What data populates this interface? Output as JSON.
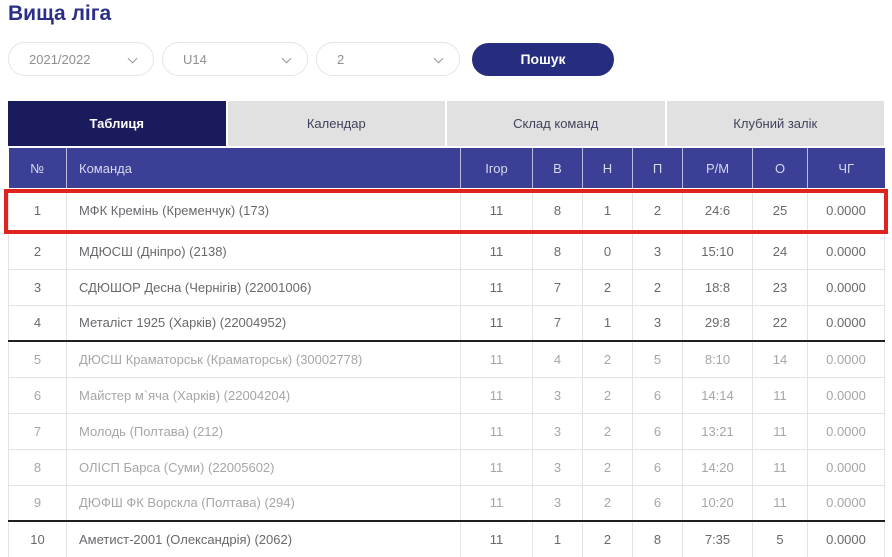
{
  "page": {
    "title": "Вища ліга"
  },
  "filters": {
    "season": {
      "value": "2021/2022"
    },
    "age_group": {
      "value": "U14"
    },
    "round": {
      "value": "2"
    },
    "search_label": "Пошук"
  },
  "tabs": [
    {
      "label": "Таблиця",
      "active": true
    },
    {
      "label": "Календар",
      "active": false
    },
    {
      "label": "Склад команд",
      "active": false
    },
    {
      "label": "Клубний залік",
      "active": false
    }
  ],
  "table": {
    "columns": [
      "№",
      "Команда",
      "Ігор",
      "В",
      "Н",
      "П",
      "Р/М",
      "О",
      "ЧГ"
    ],
    "rows": [
      {
        "pos": "1",
        "team": "МФК Кремінь (Кременчук) (173)",
        "games": "11",
        "w": "8",
        "d": "1",
        "l": "2",
        "goals": "24:6",
        "pts": "25",
        "coef": "0.0000",
        "highlighted": true,
        "muted": false,
        "separator_after": false
      },
      {
        "pos": "2",
        "team": "МДЮСШ (Дніпро) (2138)",
        "games": "11",
        "w": "8",
        "d": "0",
        "l": "3",
        "goals": "15:10",
        "pts": "24",
        "coef": "0.0000",
        "highlighted": false,
        "muted": false,
        "separator_after": false
      },
      {
        "pos": "3",
        "team": "СДЮШОР Десна (Чернігів) (22001006)",
        "games": "11",
        "w": "7",
        "d": "2",
        "l": "2",
        "goals": "18:8",
        "pts": "23",
        "coef": "0.0000",
        "highlighted": false,
        "muted": false,
        "separator_after": false
      },
      {
        "pos": "4",
        "team": "Металіст 1925 (Харків) (22004952)",
        "games": "11",
        "w": "7",
        "d": "1",
        "l": "3",
        "goals": "29:8",
        "pts": "22",
        "coef": "0.0000",
        "highlighted": false,
        "muted": false,
        "separator_after": true
      },
      {
        "pos": "5",
        "team": "ДЮСШ Краматорськ (Краматорськ) (30002778)",
        "games": "11",
        "w": "4",
        "d": "2",
        "l": "5",
        "goals": "8:10",
        "pts": "14",
        "coef": "0.0000",
        "highlighted": false,
        "muted": true,
        "separator_after": false
      },
      {
        "pos": "6",
        "team": "Майстер м`яча (Харків) (22004204)",
        "games": "11",
        "w": "3",
        "d": "2",
        "l": "6",
        "goals": "14:14",
        "pts": "11",
        "coef": "0.0000",
        "highlighted": false,
        "muted": true,
        "separator_after": false
      },
      {
        "pos": "7",
        "team": "Молодь (Полтава) (212)",
        "games": "11",
        "w": "3",
        "d": "2",
        "l": "6",
        "goals": "13:21",
        "pts": "11",
        "coef": "0.0000",
        "highlighted": false,
        "muted": true,
        "separator_after": false
      },
      {
        "pos": "8",
        "team": "ОЛІСП Барса (Суми) (22005602)",
        "games": "11",
        "w": "3",
        "d": "2",
        "l": "6",
        "goals": "14:20",
        "pts": "11",
        "coef": "0.0000",
        "highlighted": false,
        "muted": true,
        "separator_after": false
      },
      {
        "pos": "9",
        "team": "ДЮФШ ФК Ворскла (Полтава) (294)",
        "games": "11",
        "w": "3",
        "d": "2",
        "l": "6",
        "goals": "10:20",
        "pts": "11",
        "coef": "0.0000",
        "highlighted": false,
        "muted": true,
        "separator_after": true
      },
      {
        "pos": "10",
        "team": "Аметист-2001 (Олександрія) (2062)",
        "games": "11",
        "w": "1",
        "d": "2",
        "l": "8",
        "goals": "7:35",
        "pts": "5",
        "coef": "0.0000",
        "highlighted": false,
        "muted": false,
        "separator_after": false
      }
    ]
  },
  "colors": {
    "title_blue": "#2b2f86",
    "active_tab_navy": "#191b5c",
    "table_header_indigo": "#3b3f96",
    "search_button_navy": "#262d7e",
    "annotation_red": "#df241e"
  }
}
